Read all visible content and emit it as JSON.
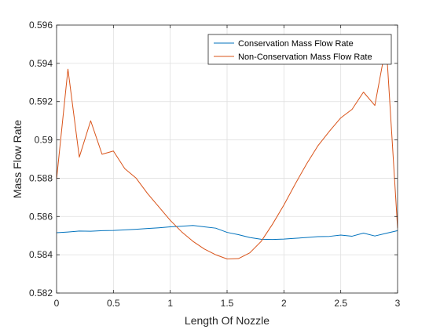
{
  "chart_data": {
    "type": "line",
    "title": "",
    "xlabel": "Length Of Nozzle",
    "ylabel": "Mass Flow Rate",
    "xlim": [
      0,
      3
    ],
    "ylim": [
      0.582,
      0.596
    ],
    "grid": true,
    "legend_position": "top-right",
    "x_ticks": [
      "0",
      "0.5",
      "1",
      "1.5",
      "2",
      "2.5",
      "3"
    ],
    "y_ticks": [
      "0.582",
      "0.584",
      "0.586",
      "0.588",
      "0.59",
      "0.592",
      "0.594",
      "0.596"
    ],
    "x": [
      0,
      0.1,
      0.2,
      0.3,
      0.4,
      0.5,
      0.6,
      0.7,
      0.8,
      0.9,
      1.0,
      1.1,
      1.2,
      1.3,
      1.4,
      1.5,
      1.6,
      1.7,
      1.8,
      1.9,
      2.0,
      2.1,
      2.2,
      2.3,
      2.4,
      2.5,
      2.6,
      2.7,
      2.8,
      2.9,
      3.0
    ],
    "series": [
      {
        "name": "Conservation Mass Flow Rate",
        "color": "#0072BD",
        "values": [
          0.58515,
          0.58519,
          0.58524,
          0.58523,
          0.58526,
          0.58527,
          0.5853,
          0.58533,
          0.58537,
          0.58541,
          0.58546,
          0.58549,
          0.58553,
          0.58546,
          0.58539,
          0.58517,
          0.58505,
          0.5849,
          0.58481,
          0.5848,
          0.58482,
          0.58486,
          0.5849,
          0.58495,
          0.58496,
          0.58503,
          0.58497,
          0.58513,
          0.58498,
          0.58512,
          0.58526
        ]
      },
      {
        "name": "Non-Conservation Mass Flow Rate",
        "color": "#D95319",
        "values": [
          0.58795,
          0.5937,
          0.5891,
          0.591,
          0.58925,
          0.58942,
          0.5885,
          0.588,
          0.5872,
          0.5865,
          0.5858,
          0.5852,
          0.5847,
          0.5843,
          0.584,
          0.58378,
          0.5838,
          0.5841,
          0.5847,
          0.5856,
          0.5866,
          0.5877,
          0.58875,
          0.5897,
          0.59045,
          0.59115,
          0.5916,
          0.5925,
          0.5918,
          0.595,
          0.5854
        ]
      }
    ]
  }
}
